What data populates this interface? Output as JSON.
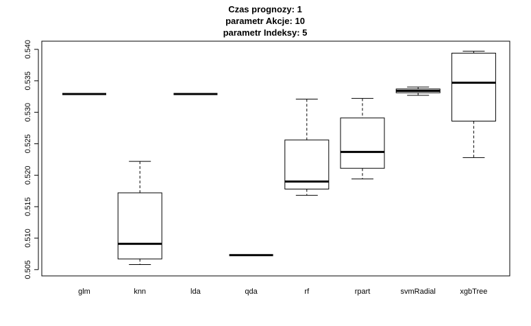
{
  "chart_data": {
    "type": "boxplot",
    "title": [
      "Czas prognozy: 1",
      "parametr Akcje: 10",
      "parametr Indeksy: 5"
    ],
    "xlabel": "",
    "ylabel": "",
    "ylim": [
      0.504,
      0.5413
    ],
    "y_ticks": [
      "0.505",
      "0.510",
      "0.515",
      "0.520",
      "0.525",
      "0.530",
      "0.535",
      "0.540"
    ],
    "grid": false,
    "categories": [
      "glm",
      "knn",
      "lda",
      "qda",
      "rf",
      "rpart",
      "svmRadial",
      "xgbTree"
    ],
    "boxes": [
      {
        "name": "glm",
        "min": 0.5329,
        "q1": 0.5329,
        "median": 0.5329,
        "q3": 0.5329,
        "max": 0.5329
      },
      {
        "name": "knn",
        "min": 0.5058,
        "q1": 0.5067,
        "median": 0.5091,
        "q3": 0.5172,
        "max": 0.5222
      },
      {
        "name": "lda",
        "min": 0.5329,
        "q1": 0.5329,
        "median": 0.5329,
        "q3": 0.5329,
        "max": 0.5329
      },
      {
        "name": "qda",
        "min": 0.5073,
        "q1": 0.5073,
        "median": 0.5073,
        "q3": 0.5073,
        "max": 0.5073
      },
      {
        "name": "rf",
        "min": 0.5168,
        "q1": 0.5178,
        "median": 0.519,
        "q3": 0.5256,
        "max": 0.5321
      },
      {
        "name": "rpart",
        "min": 0.5194,
        "q1": 0.5211,
        "median": 0.5237,
        "q3": 0.5291,
        "max": 0.5322
      },
      {
        "name": "svmRadial",
        "min": 0.5327,
        "q1": 0.5331,
        "median": 0.5334,
        "q3": 0.5337,
        "max": 0.534
      },
      {
        "name": "xgbTree",
        "min": 0.5228,
        "q1": 0.5286,
        "median": 0.5347,
        "q3": 0.5394,
        "max": 0.5397
      }
    ]
  }
}
